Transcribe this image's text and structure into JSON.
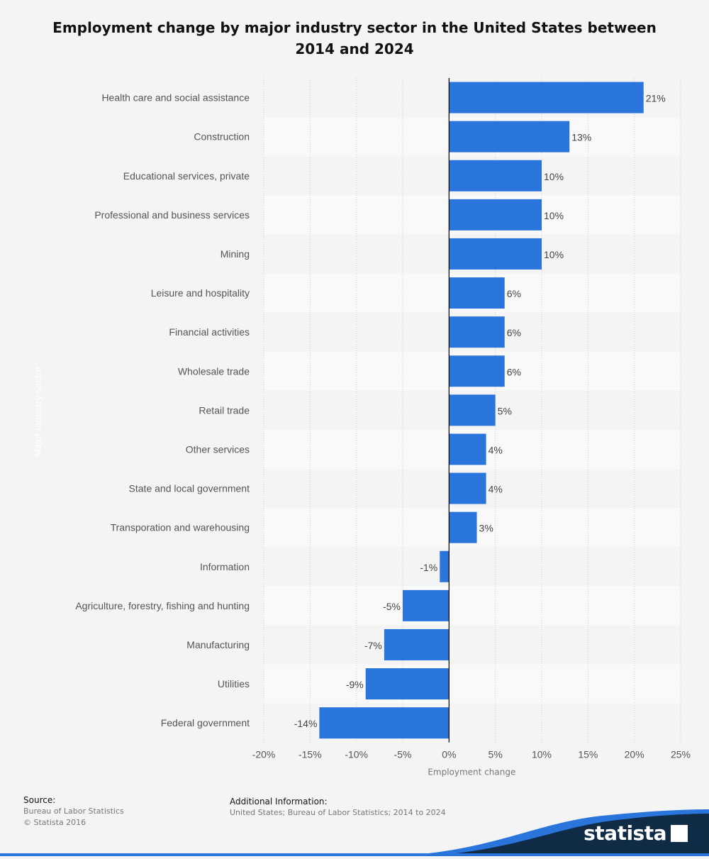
{
  "title": "Employment change by major industry sector in the United States between 2014 and 2024",
  "chart_data": {
    "type": "bar",
    "orientation": "horizontal",
    "categories": [
      "Health care and social assistance",
      "Construction",
      "Educational services, private",
      "Professional and business services",
      "Mining",
      "Leisure and hospitality",
      "Financial activities",
      "Wholesale trade",
      "Retail trade",
      "Other services",
      "State and local government",
      "Transporation and warehousing",
      "Information",
      "Agriculture, forestry, fishing and hunting",
      "Manufacturing",
      "Utilities",
      "Federal government"
    ],
    "values": [
      21,
      13,
      10,
      10,
      10,
      6,
      6,
      6,
      5,
      4,
      4,
      3,
      -1,
      -5,
      -7,
      -9,
      -14
    ],
    "value_labels": [
      "21%",
      "13%",
      "10%",
      "10%",
      "10%",
      "6%",
      "6%",
      "6%",
      "5%",
      "4%",
      "4%",
      "3%",
      "-1%",
      "-5%",
      "-7%",
      "-9%",
      "-14%"
    ],
    "xlim": [
      -20,
      25
    ],
    "xticks": [
      -20,
      -15,
      -10,
      -5,
      0,
      5,
      10,
      15,
      20,
      25
    ],
    "xtick_labels": [
      "-20%",
      "-15%",
      "-10%",
      "-5%",
      "0%",
      "5%",
      "10%",
      "15%",
      "20%",
      "25%"
    ],
    "xlabel": "Employment change",
    "ylabel": "Major industry sector",
    "grid": true,
    "legend": "none",
    "bar_color": "#2a75dc"
  },
  "footer": {
    "source_heading": "Source:",
    "source_line1": "Bureau of Labor Statistics",
    "source_line2": "© Statista 2016",
    "info_heading": "Additional Information:",
    "info_line": "United States; Bureau of Labor Statistics; 2014 to 2024"
  },
  "brand": {
    "name": "statista",
    "logo_icon": "statista-logo-icon",
    "colors": {
      "dark": "#0f2b45",
      "accent": "#2a75dc"
    }
  }
}
